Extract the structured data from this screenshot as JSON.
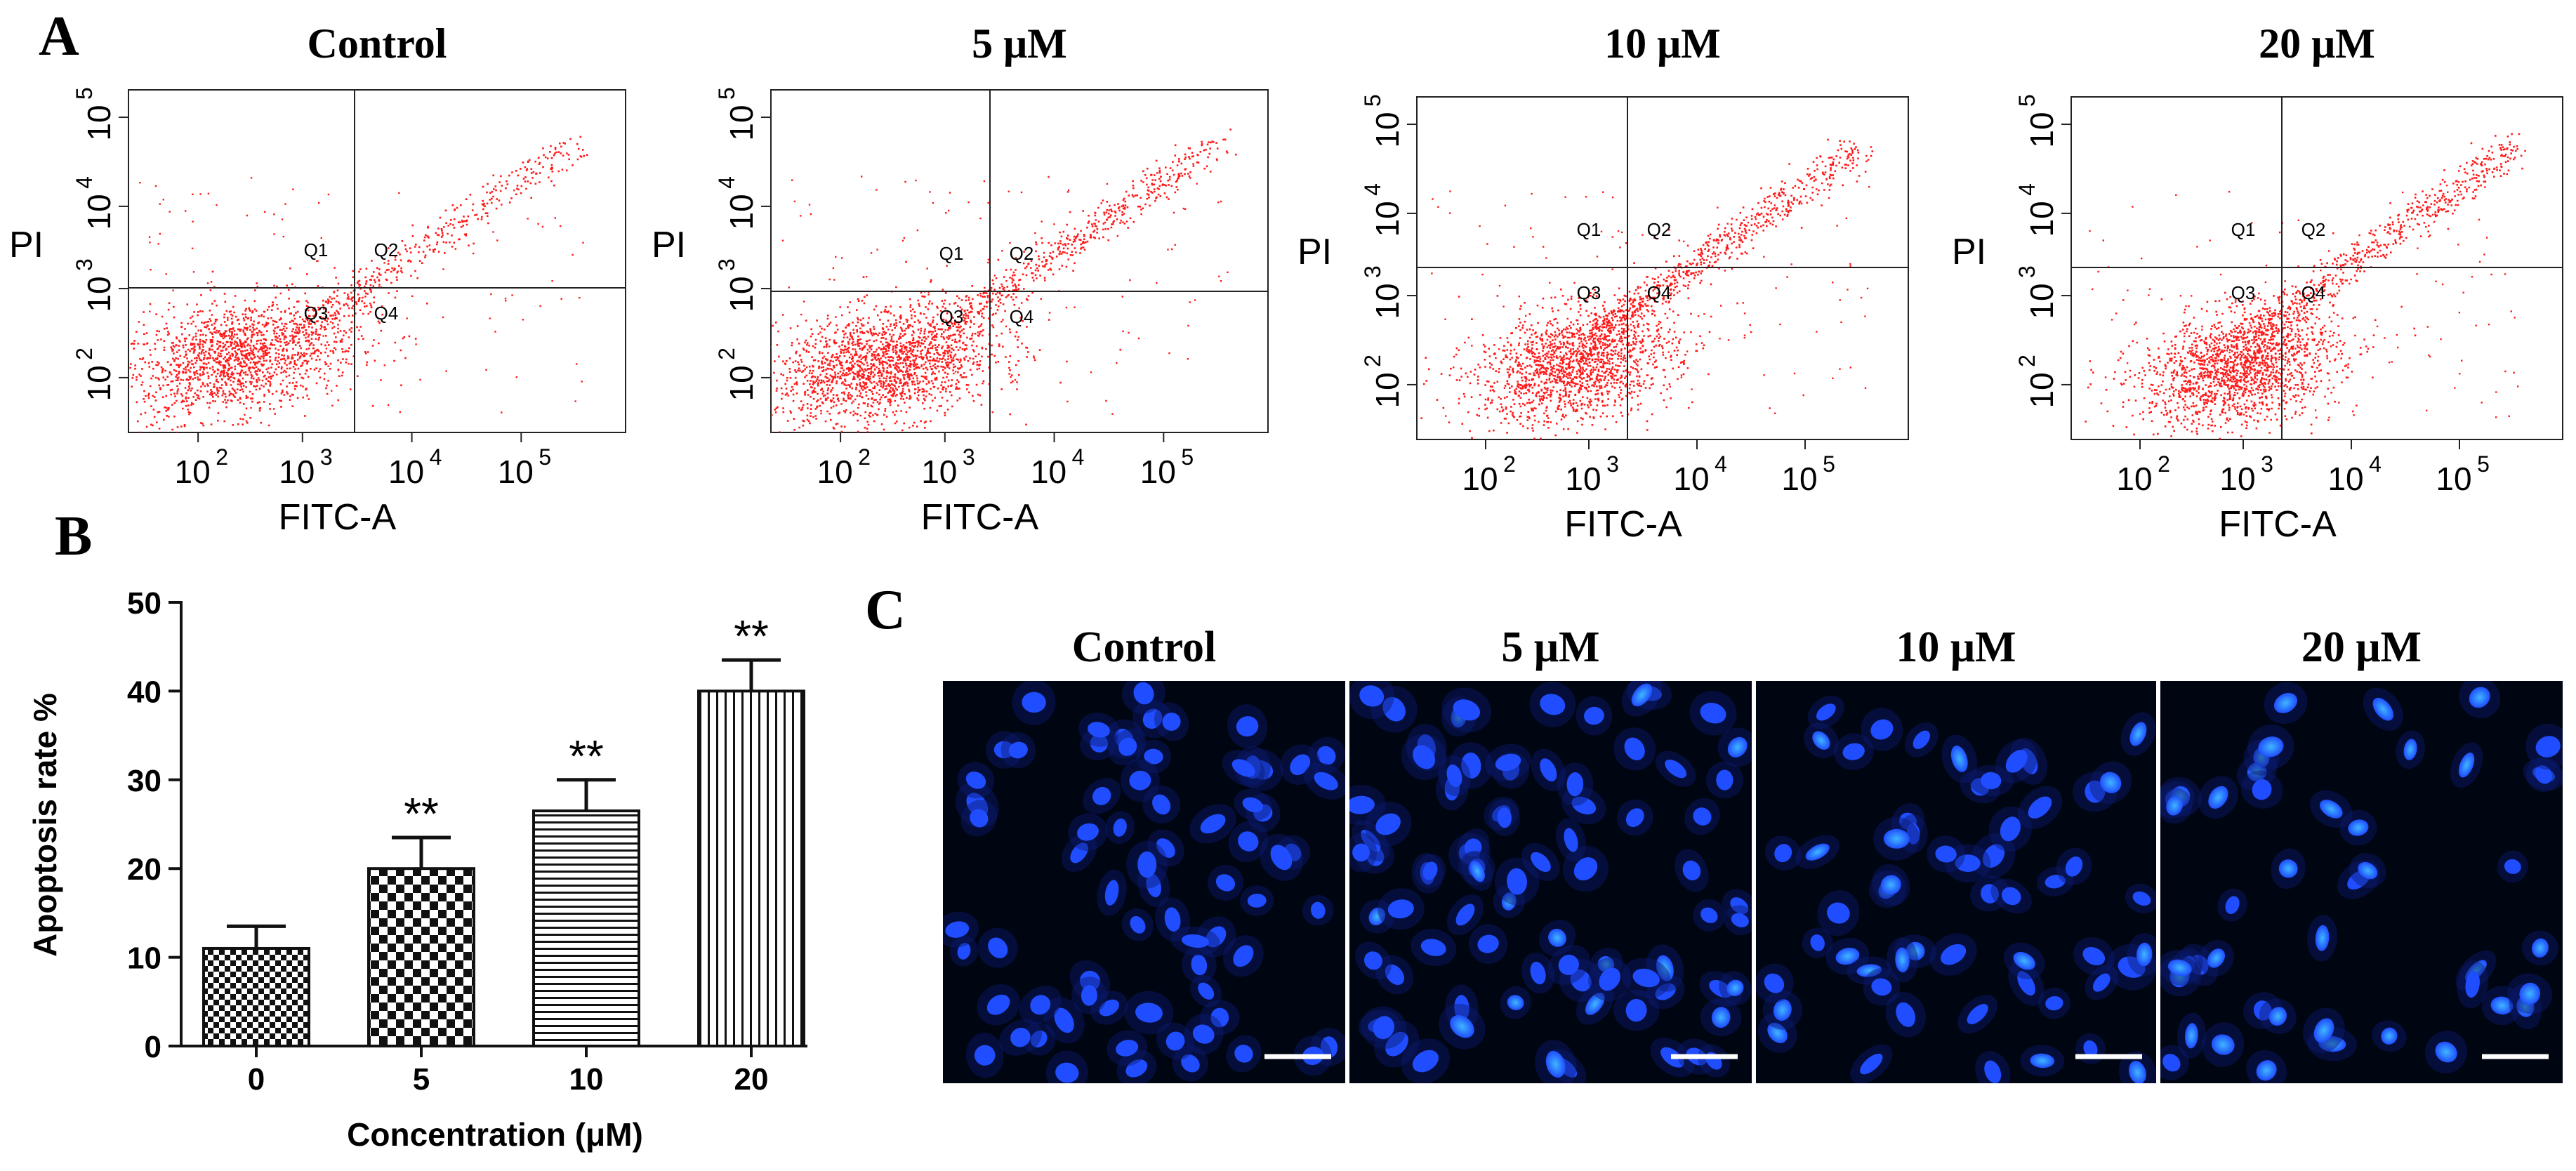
{
  "panels": {
    "a_letter": "A",
    "b_letter": "B",
    "c_letter": "C"
  },
  "flow": {
    "x_label": "FITC-A",
    "y_label": "PI",
    "x_ticks": [
      "10",
      "10",
      "10",
      "10"
    ],
    "x_tick_exps": [
      "2",
      "3",
      "4",
      "5"
    ],
    "y_ticks": [
      "10",
      "10",
      "10",
      "10"
    ],
    "y_tick_exps": [
      "2",
      "3",
      "4",
      "5"
    ],
    "quadrants": [
      "Q1",
      "Q2",
      "Q3",
      "Q4"
    ],
    "plots": [
      {
        "title": "Control"
      },
      {
        "title": "5 μM"
      },
      {
        "title": "10 μM"
      },
      {
        "title": "20 μM"
      }
    ]
  },
  "chart_data": {
    "type": "bar",
    "title": "",
    "categories": [
      "0",
      "5",
      "10",
      "20"
    ],
    "values": [
      11,
      20,
      26.5,
      40
    ],
    "errors": [
      2.5,
      3.5,
      3.5,
      3.5
    ],
    "significance": [
      "",
      "**",
      "**",
      "**"
    ],
    "xlabel": "Concentration (μM)",
    "ylabel": "Apoptosis rate %",
    "ylim": [
      0,
      50
    ],
    "yticks": [
      "0",
      "10",
      "20",
      "30",
      "40",
      "50"
    ]
  },
  "micrographs": {
    "labels": [
      "Control",
      "5 μM",
      "10 μM",
      "20 μM"
    ]
  },
  "colors": {
    "dots": "#ff1a1a",
    "nuclei": "#1f4dff",
    "bright_nuclei": "#3fb6ff",
    "micro_bg": "#000512"
  }
}
